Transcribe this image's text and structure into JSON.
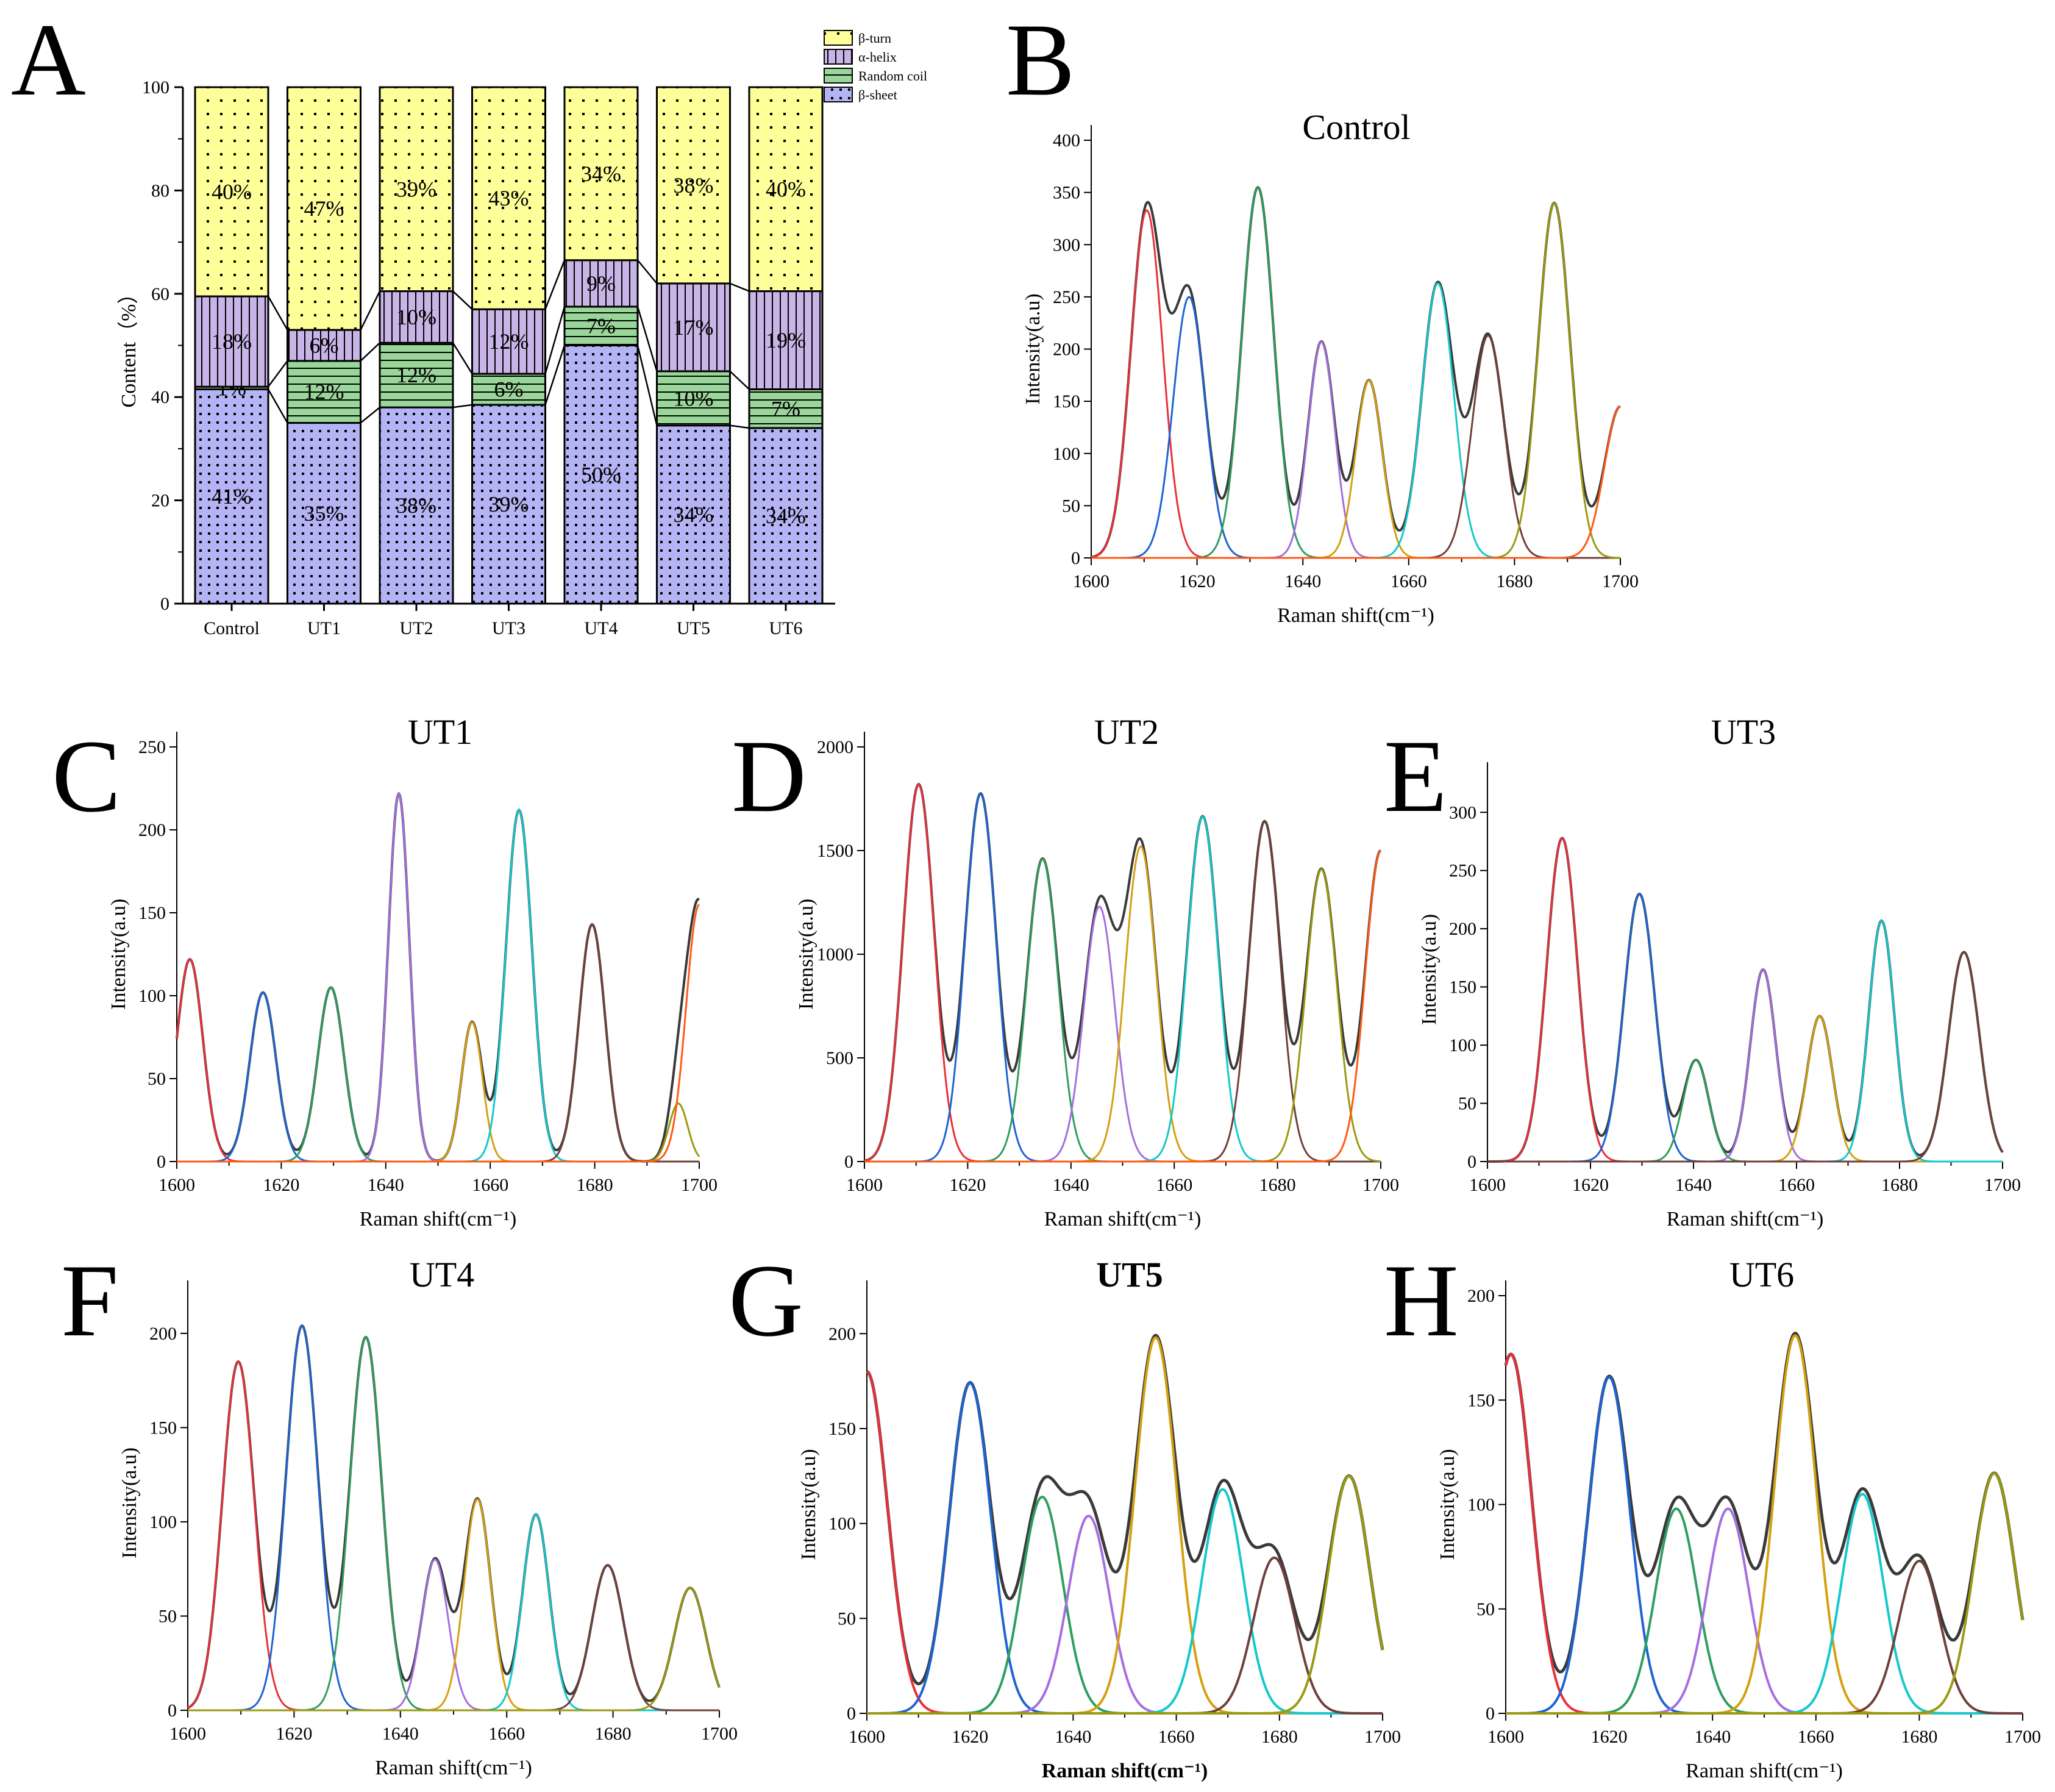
{
  "colors": {
    "beta_turn": "#ffff99",
    "alpha_helix": "#c8b4e6",
    "random_coil": "#99d699",
    "beta_sheet": "#b4b4f5",
    "red": "#e8303a",
    "blue": "#1f63d3",
    "green": "#2e9e5e",
    "purple": "#a46ee0",
    "orange": "#d4a010",
    "cyan": "#14c8cc",
    "brown": "#70403a",
    "olive": "#9a9a10",
    "dark": "#3a3a3a",
    "orangered": "#ff5a14"
  },
  "chart_data": [
    {
      "panel": "A",
      "type": "bar",
      "stacked": true,
      "title": "",
      "ylabel": "Content（%）",
      "xlabel": "",
      "ylim": [
        0,
        100
      ],
      "yticks": [
        "0",
        "20",
        "40",
        "60",
        "80",
        "100"
      ],
      "categories": [
        "Control",
        "UT1",
        "UT2",
        "UT3",
        "UT4",
        "UT5",
        "UT6"
      ],
      "legend": [
        "β-turn",
        "α-helix",
        "Random coil",
        "β-sheet"
      ],
      "series": [
        {
          "name": "β-sheet",
          "values": [
            41.5,
            35,
            38,
            38.5,
            50,
            34.5,
            34
          ],
          "labels": [
            "41%",
            "35%",
            "38%",
            "39%",
            "50%",
            "34%",
            "34%"
          ]
        },
        {
          "name": "Random coil",
          "values": [
            0.5,
            12,
            12.5,
            6,
            7.5,
            10.5,
            7.5
          ],
          "labels": [
            "1%",
            "12%",
            "12%",
            "6%",
            "7%",
            "10%",
            "7%"
          ]
        },
        {
          "name": "α-helix",
          "values": [
            17.5,
            6,
            10,
            12.5,
            9,
            17,
            19
          ],
          "labels": [
            "18%",
            "6%",
            "10%",
            "12%",
            "9%",
            "17%",
            "19%"
          ]
        },
        {
          "name": "β-turn",
          "values": [
            40.5,
            47,
            39.5,
            43,
            33.5,
            38,
            39.5
          ],
          "labels": [
            "40%",
            "47%",
            "39%",
            "43%",
            "34%",
            "38%",
            "40%"
          ]
        }
      ]
    },
    {
      "panel": "B",
      "type": "line",
      "title": "Control",
      "xlabel": "Raman  shift(cm⁻¹)",
      "ylabel": "Intensity(a.u)",
      "xlim": [
        1600,
        1700
      ],
      "ylim": [
        0,
        400
      ],
      "xticks": [
        "1600",
        "1620",
        "1640",
        "1660",
        "1680",
        "1700"
      ],
      "yticks": [
        "0",
        "50",
        "100",
        "150",
        "200",
        "250",
        "300",
        "350",
        "400"
      ],
      "peaks": [
        [
          1610.5,
          333,
          3,
          "red"
        ],
        [
          1618.5,
          250,
          3,
          "blue"
        ],
        [
          1631.5,
          355,
          3,
          "green"
        ],
        [
          1643.5,
          207,
          2.5,
          "purple"
        ],
        [
          1652.5,
          170,
          2.5,
          "orange"
        ],
        [
          1665.5,
          263,
          3,
          "cyan"
        ],
        [
          1675,
          213,
          3,
          "brown"
        ],
        [
          1687.5,
          340,
          3,
          "olive"
        ],
        [
          1700,
          145,
          3,
          "orangered"
        ]
      ]
    },
    {
      "panel": "C",
      "type": "line",
      "title": "UT1",
      "xlabel": "Raman  shift(cm⁻¹)",
      "ylabel": "Intensity(a.u)",
      "xlim": [
        1600,
        1700
      ],
      "ylim": [
        0,
        250
      ],
      "xticks": [
        "1600",
        "1620",
        "1640",
        "1660",
        "1680",
        "1700"
      ],
      "yticks": [
        "0",
        "50",
        "100",
        "150",
        "200",
        "250"
      ],
      "peaks": [
        [
          1602.5,
          122,
          2.5,
          "red"
        ],
        [
          1616.5,
          102,
          2.5,
          "blue"
        ],
        [
          1629.5,
          105,
          2.5,
          "green"
        ],
        [
          1642.5,
          222,
          2,
          "purple"
        ],
        [
          1656.5,
          84,
          2,
          "orange"
        ],
        [
          1665.5,
          212,
          2.5,
          "cyan"
        ],
        [
          1679.5,
          143,
          2.5,
          "brown"
        ],
        [
          1696,
          35,
          1.8,
          "olive"
        ],
        [
          1700,
          155,
          2.5,
          "orangered"
        ]
      ]
    },
    {
      "panel": "D",
      "type": "line",
      "title": "UT2",
      "xlabel": "Raman  shift(cm⁻¹)",
      "ylabel": "Intensity(a.u)",
      "xlim": [
        1600,
        1700
      ],
      "ylim": [
        0,
        2000
      ],
      "xticks": [
        "1600",
        "1620",
        "1640",
        "1660",
        "1680",
        "1700"
      ],
      "yticks": [
        "0",
        "500",
        "1000",
        "1500",
        "2000"
      ],
      "peaks": [
        [
          1610.5,
          1820,
          3,
          "red"
        ],
        [
          1622.5,
          1775,
          3,
          "blue"
        ],
        [
          1634.5,
          1460,
          3,
          "green"
        ],
        [
          1645.5,
          1230,
          3,
          "purple"
        ],
        [
          1653.5,
          1520,
          3,
          "orange"
        ],
        [
          1665.5,
          1665,
          3,
          "cyan"
        ],
        [
          1677.5,
          1640,
          3,
          "brown"
        ],
        [
          1688.5,
          1410,
          3,
          "olive"
        ],
        [
          1700,
          1500,
          3,
          "orangered"
        ]
      ]
    },
    {
      "panel": "E",
      "type": "line",
      "title": "UT3",
      "xlabel": "Raman  shift(cm⁻¹)",
      "ylabel": "Intensity(a.u)",
      "xlim": [
        1600,
        1700
      ],
      "ylim": [
        0,
        330
      ],
      "xticks": [
        "1600",
        "1620",
        "1640",
        "1660",
        "1680",
        "1700"
      ],
      "yticks": [
        "0",
        "50",
        "100",
        "150",
        "200",
        "250",
        "300"
      ],
      "peaks": [
        [
          1614.5,
          278,
          3,
          "red"
        ],
        [
          1629.5,
          230,
          3,
          "blue"
        ],
        [
          1640.5,
          87,
          2.5,
          "green"
        ],
        [
          1653.5,
          165,
          2.5,
          "purple"
        ],
        [
          1664.5,
          125,
          2.5,
          "orange"
        ],
        [
          1676.5,
          207,
          2.5,
          "cyan"
        ],
        [
          1692.5,
          180,
          3,
          "brown"
        ]
      ]
    },
    {
      "panel": "F",
      "type": "line",
      "title": "UT4",
      "xlabel": "Raman  shift(cm⁻¹)",
      "ylabel": "Intensity(a.u)",
      "xlim": [
        1600,
        1700
      ],
      "ylim": [
        0,
        220
      ],
      "xticks": [
        "1600",
        "1620",
        "1640",
        "1660",
        "1680",
        "1700"
      ],
      "yticks": [
        "0",
        "50",
        "100",
        "150",
        "200"
      ],
      "peaks": [
        [
          1609.5,
          185,
          3,
          "red"
        ],
        [
          1621.5,
          204,
          3,
          "blue"
        ],
        [
          1633.5,
          198,
          3,
          "green"
        ],
        [
          1646.5,
          80,
          2.5,
          "purple"
        ],
        [
          1654.5,
          112,
          2.5,
          "orange"
        ],
        [
          1665.5,
          104,
          2.5,
          "cyan"
        ],
        [
          1679,
          77,
          3,
          "brown"
        ],
        [
          1694.5,
          65,
          3,
          "olive"
        ]
      ]
    },
    {
      "panel": "G",
      "type": "line",
      "title": "UT5",
      "xlabel": "Raman  shift(cm⁻¹)",
      "ylabel": "Intensity(a.u)",
      "xlim": [
        1600,
        1700
      ],
      "ylim": [
        0,
        220
      ],
      "xticks": [
        "1600",
        "1620",
        "1640",
        "1660",
        "1680",
        "1700"
      ],
      "yticks": [
        "0",
        "50",
        "100",
        "150",
        "200"
      ],
      "peaks": [
        [
          1600,
          180,
          4,
          "red"
        ],
        [
          1620,
          174,
          4,
          "blue"
        ],
        [
          1634,
          114,
          4,
          "green"
        ],
        [
          1643,
          104,
          4,
          "purple"
        ],
        [
          1656,
          198,
          4,
          "orange"
        ],
        [
          1669,
          118,
          4,
          "cyan"
        ],
        [
          1679,
          82,
          4,
          "brown"
        ],
        [
          1693.5,
          125,
          4,
          "olive"
        ]
      ]
    },
    {
      "panel": "H",
      "type": "line",
      "title": "UT6",
      "xlabel": "Raman  shift(cm⁻¹)",
      "ylabel": "Intensity(a.u)",
      "xlim": [
        1600,
        1700
      ],
      "ylim": [
        0,
        200
      ],
      "xticks": [
        "1600",
        "1620",
        "1640",
        "1660",
        "1680",
        "1700"
      ],
      "yticks": [
        "0",
        "50",
        "100",
        "150",
        "200"
      ],
      "peaks": [
        [
          1601,
          172,
          4,
          "red"
        ],
        [
          1620,
          161,
          4,
          "blue"
        ],
        [
          1633,
          98,
          4,
          "green"
        ],
        [
          1643,
          98,
          4,
          "purple"
        ],
        [
          1656,
          181,
          4,
          "orange"
        ],
        [
          1669,
          105,
          4,
          "cyan"
        ],
        [
          1680,
          73,
          4,
          "brown"
        ],
        [
          1694.5,
          115,
          4,
          "olive"
        ]
      ]
    }
  ],
  "panel_letters": [
    "A",
    "B",
    "C",
    "D",
    "E",
    "F",
    "G",
    "H"
  ]
}
